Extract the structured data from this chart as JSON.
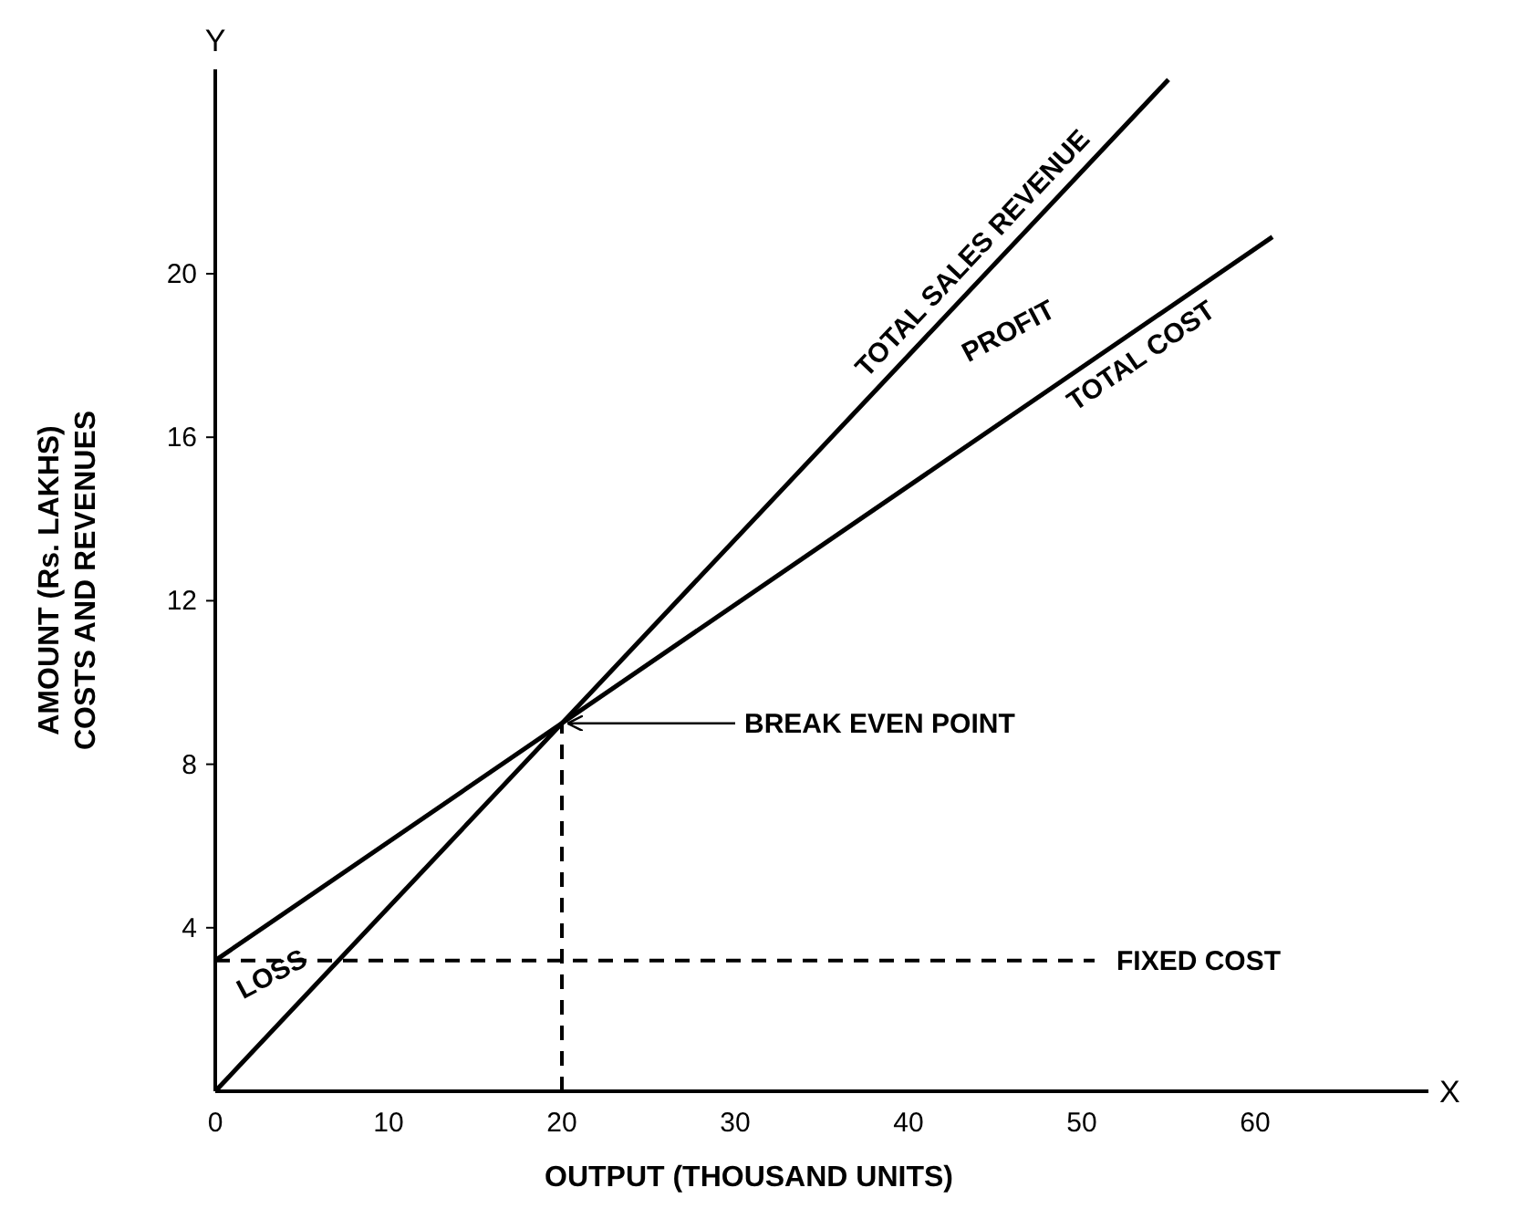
{
  "chart_data": {
    "type": "line",
    "xlabel": "OUTPUT (THOUSAND UNITS)",
    "ylabel": "AMOUNT (Rs. LAKHS)\nCOSTS AND REVENUES",
    "xlim": [
      0,
      70
    ],
    "ylim": [
      0,
      25
    ],
    "xticks": [
      0,
      10,
      20,
      30,
      40,
      50,
      60
    ],
    "yticks": [
      4,
      8,
      12,
      16,
      20
    ],
    "series": [
      {
        "name": "TOTAL SALES REVENUE",
        "color": "#000000",
        "x": [
          0,
          55
        ],
        "values": [
          0,
          24.75
        ]
      },
      {
        "name": "TOTAL COST",
        "color": "#000000",
        "x": [
          0,
          61
        ],
        "values": [
          3.2,
          20.9
        ]
      }
    ],
    "ref_lines": [
      {
        "axis": "y",
        "value": 3.2,
        "label": "FIXED COST",
        "line_style": "dashed"
      },
      {
        "axis": "x",
        "value": 20,
        "label": null,
        "line_style": "dashed"
      }
    ],
    "annotations": [
      {
        "text": "BREAK EVEN POINT",
        "x": 20,
        "y": 9
      },
      "PROFIT",
      "LOSS",
      "X",
      "Y"
    ],
    "line_style": "solid",
    "marker": "none",
    "grid": false
  }
}
